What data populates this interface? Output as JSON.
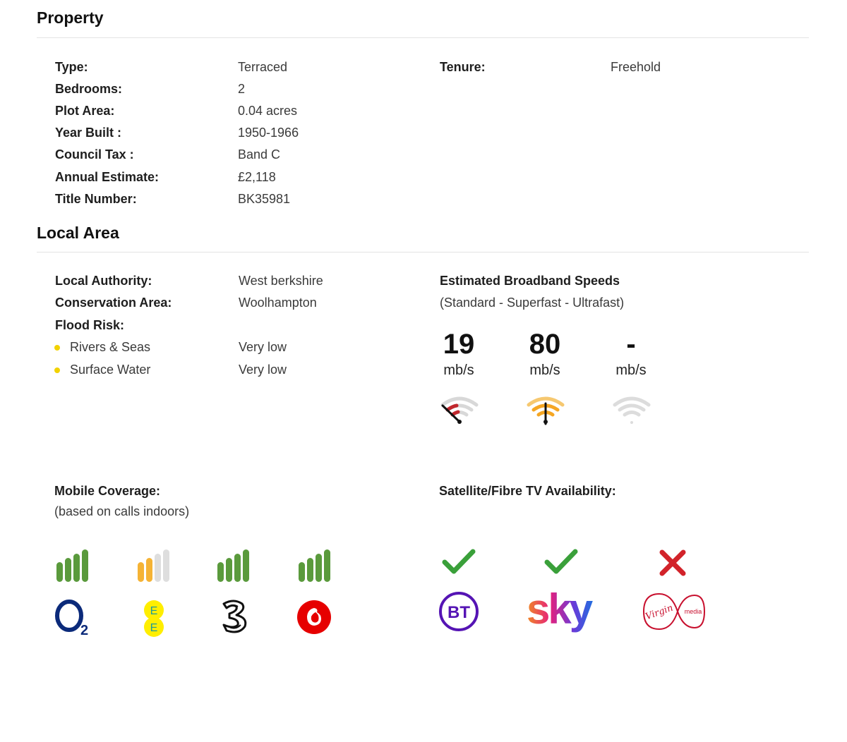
{
  "property": {
    "title": "Property",
    "rows": [
      {
        "label": "Type:",
        "value": "Terraced"
      },
      {
        "label": "Bedrooms:",
        "value": "2"
      },
      {
        "label": "Plot Area:",
        "value": "0.04 acres"
      },
      {
        "label": "Year Built :",
        "value": "1950-1966"
      },
      {
        "label": "Council Tax :",
        "value": "Band C"
      },
      {
        "label": "Annual Estimate:",
        "value": "£2,118"
      },
      {
        "label": "Title Number:",
        "value": "BK35981"
      }
    ],
    "tenure": {
      "label": "Tenure:",
      "value": "Freehold"
    }
  },
  "local_area": {
    "title": "Local Area",
    "local_authority": {
      "label": "Local Authority:",
      "value": "West berkshire"
    },
    "conservation_area": {
      "label": "Conservation Area:",
      "value": "Woolhampton"
    },
    "flood_risk": {
      "label": "Flood Risk:",
      "items": [
        {
          "label": "Rivers & Seas",
          "value": "Very low"
        },
        {
          "label": "Surface Water",
          "value": "Very low"
        }
      ]
    }
  },
  "broadband": {
    "title": "Estimated Broadband Speeds",
    "subtitle": "(Standard - Superfast - Ultrafast)",
    "speeds": [
      {
        "value": "19",
        "unit": "mb/s",
        "status_color": "#c0272d"
      },
      {
        "value": "80",
        "unit": "mb/s",
        "status_color": "#f5a623"
      },
      {
        "value": "-",
        "unit": "mb/s",
        "status_color": "#d8d8d8"
      }
    ]
  },
  "mobile": {
    "title": "Mobile Coverage:",
    "subtitle": "(based on calls indoors)",
    "networks": [
      {
        "name": "O2",
        "signal_bars": 4,
        "bar_color": "#5a9a3c"
      },
      {
        "name": "EE",
        "signal_bars": 2,
        "bar_color": "#f5b335",
        "logo_text": "E E"
      },
      {
        "name": "Three",
        "signal_bars": 4,
        "bar_color": "#5a9a3c",
        "logo_text": "3"
      },
      {
        "name": "Vodafone",
        "signal_bars": 4,
        "bar_color": "#5a9a3c"
      }
    ]
  },
  "tv": {
    "title": "Satellite/Fibre TV Availability:",
    "providers": [
      {
        "name": "BT",
        "available": true,
        "logo_text": "BT"
      },
      {
        "name": "Sky",
        "available": true,
        "logo_text": "sky"
      },
      {
        "name": "Virgin Media",
        "available": false,
        "logo_text": "Virgin",
        "logo_sub": "media"
      }
    ]
  },
  "colors": {
    "check_green": "#3aa03a",
    "cross_red": "#d2232a",
    "flood_dot": "#f2d200",
    "bt_purple": "#5514b4",
    "virgin_red": "#c8102e",
    "vodafone_red": "#e60000",
    "o2_blue": "#0b2a7a"
  }
}
